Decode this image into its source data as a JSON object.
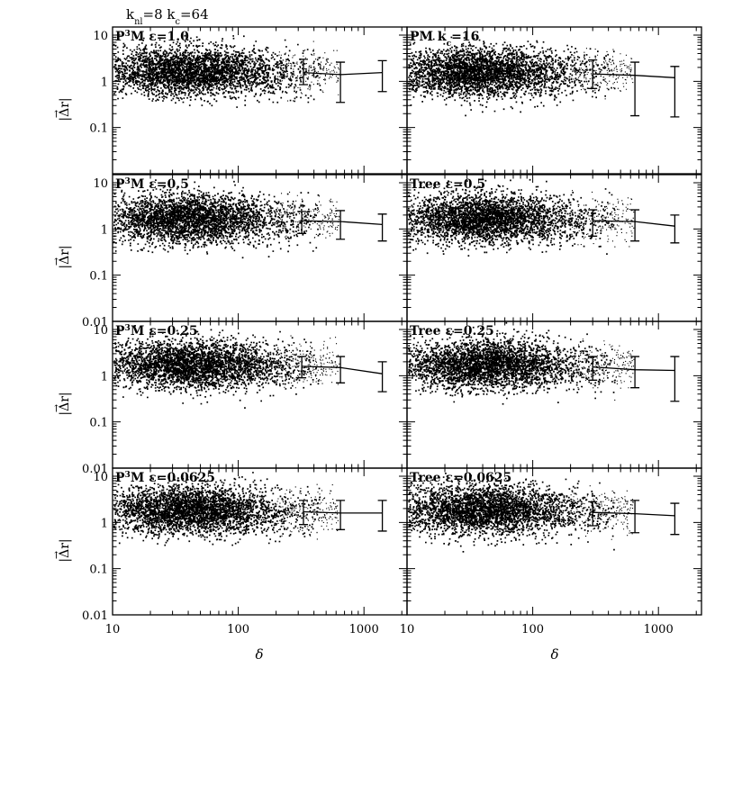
{
  "figure": {
    "header_parts": [
      {
        "t": "k",
        "s": "normal"
      },
      {
        "t": "nl",
        "s": "sub"
      },
      {
        "t": "=8  k",
        "s": "normal"
      },
      {
        "t": "c",
        "s": "sub"
      },
      {
        "t": "=64",
        "s": "normal"
      }
    ],
    "xlabel": "δ",
    "ylabel": "|Δr|",
    "ylabel_arrow": "→"
  },
  "chart_data": [
    {
      "type": "scatter",
      "id": "p3m-1.0",
      "row": 0,
      "col": 0,
      "label_parts": [
        {
          "t": "P",
          "s": "normal"
        },
        {
          "t": "3",
          "s": "sup"
        },
        {
          "t": "M  ε=1.0",
          "s": "normal"
        }
      ],
      "xscale": "log",
      "yscale": "log",
      "xlim": [
        10,
        2200
      ],
      "ylim": [
        0.01,
        15
      ],
      "xticklabels": [],
      "yticklabels": [
        "10",
        "1",
        "0.1"
      ],
      "cloud": {
        "x_center": 40,
        "y_center": 1.7,
        "density": "high"
      },
      "series": [
        {
          "x": [
            330,
            650,
            1400
          ],
          "y": [
            1.55,
            1.4,
            1.55
          ],
          "ylo": [
            0.85,
            0.35,
            0.6
          ],
          "yhi": [
            3.0,
            2.6,
            2.8
          ]
        }
      ]
    },
    {
      "type": "scatter",
      "id": "pm-16",
      "row": 0,
      "col": 1,
      "label_parts": [
        {
          "t": "PM  k",
          "s": "normal"
        },
        {
          "t": "c",
          "s": "sub"
        },
        {
          "t": "=16",
          "s": "normal"
        }
      ],
      "xscale": "log",
      "yscale": "log",
      "xlim": [
        10,
        2200
      ],
      "ylim": [
        0.01,
        15
      ],
      "xticklabels": [],
      "yticklabels": [],
      "cloud": {
        "x_center": 35,
        "y_center": 1.6,
        "density": "high"
      },
      "series": [
        {
          "x": [
            300,
            650,
            1350
          ],
          "y": [
            1.45,
            1.35,
            1.2
          ],
          "ylo": [
            0.7,
            0.18,
            0.17
          ],
          "yhi": [
            2.9,
            2.6,
            2.1
          ]
        }
      ]
    },
    {
      "type": "scatter",
      "id": "p3m-0.5",
      "row": 1,
      "col": 0,
      "label_parts": [
        {
          "t": "P",
          "s": "normal"
        },
        {
          "t": "3",
          "s": "sup"
        },
        {
          "t": "M  ε=0.5",
          "s": "normal"
        }
      ],
      "xscale": "log",
      "yscale": "log",
      "xlim": [
        10,
        2200
      ],
      "ylim": [
        0.01,
        15
      ],
      "xticklabels": [],
      "yticklabels": [
        "10",
        "1",
        "0.1",
        "0.01"
      ],
      "cloud": {
        "x_center": 40,
        "y_center": 1.7,
        "density": "high"
      },
      "series": [
        {
          "x": [
            320,
            650,
            1400
          ],
          "y": [
            1.5,
            1.45,
            1.25
          ],
          "ylo": [
            0.8,
            0.6,
            0.55
          ],
          "yhi": [
            2.4,
            2.5,
            2.1
          ]
        }
      ]
    },
    {
      "type": "scatter",
      "id": "tree-0.5",
      "row": 1,
      "col": 1,
      "label_parts": [
        {
          "t": "Tree  ε=0.5",
          "s": "normal"
        }
      ],
      "xscale": "log",
      "yscale": "log",
      "xlim": [
        10,
        2200
      ],
      "ylim": [
        0.01,
        15
      ],
      "xticklabels": [],
      "yticklabels": [],
      "cloud": {
        "x_center": 40,
        "y_center": 1.7,
        "density": "high"
      },
      "series": [
        {
          "x": [
            300,
            650,
            1350
          ],
          "y": [
            1.5,
            1.45,
            1.15
          ],
          "ylo": [
            0.7,
            0.55,
            0.5
          ],
          "yhi": [
            2.6,
            2.6,
            2.0
          ]
        }
      ]
    },
    {
      "type": "scatter",
      "id": "p3m-0.25",
      "row": 2,
      "col": 0,
      "label_parts": [
        {
          "t": "P",
          "s": "normal"
        },
        {
          "t": "3",
          "s": "sup"
        },
        {
          "t": "M  ε=0.25",
          "s": "normal"
        }
      ],
      "xscale": "log",
      "yscale": "log",
      "xlim": [
        10,
        2200
      ],
      "ylim": [
        0.01,
        15
      ],
      "xticklabels": [],
      "yticklabels": [
        "10",
        "1",
        "0.1",
        "0.01"
      ],
      "cloud": {
        "x_center": 40,
        "y_center": 1.8,
        "density": "high"
      },
      "series": [
        {
          "x": [
            320,
            650,
            1400
          ],
          "y": [
            1.6,
            1.5,
            1.1
          ],
          "ylo": [
            0.9,
            0.7,
            0.45
          ],
          "yhi": [
            2.6,
            2.6,
            2.0
          ]
        }
      ]
    },
    {
      "type": "scatter",
      "id": "tree-0.25",
      "row": 2,
      "col": 1,
      "label_parts": [
        {
          "t": "Tree  ε=0.25",
          "s": "normal"
        }
      ],
      "xscale": "log",
      "yscale": "log",
      "xlim": [
        10,
        2200
      ],
      "ylim": [
        0.01,
        15
      ],
      "xticklabels": [],
      "yticklabels": [],
      "cloud": {
        "x_center": 40,
        "y_center": 1.8,
        "density": "high"
      },
      "series": [
        {
          "x": [
            300,
            650,
            1350
          ],
          "y": [
            1.55,
            1.35,
            1.3
          ],
          "ylo": [
            0.8,
            0.55,
            0.28
          ],
          "yhi": [
            2.6,
            2.6,
            2.6
          ]
        }
      ]
    },
    {
      "type": "scatter",
      "id": "p3m-0.0625",
      "row": 3,
      "col": 0,
      "label_parts": [
        {
          "t": "P",
          "s": "normal"
        },
        {
          "t": "3",
          "s": "sup"
        },
        {
          "t": "M  ε=0.0625",
          "s": "normal"
        }
      ],
      "xscale": "log",
      "yscale": "log",
      "xlim": [
        10,
        2200
      ],
      "ylim": [
        0.01,
        15
      ],
      "xticklabels": [
        "10",
        "100",
        "1000"
      ],
      "yticklabels": [
        "10",
        "1",
        "0.1",
        "0.01"
      ],
      "cloud": {
        "x_center": 40,
        "y_center": 1.9,
        "density": "high"
      },
      "series": [
        {
          "x": [
            330,
            650,
            1400
          ],
          "y": [
            1.7,
            1.6,
            1.6
          ],
          "ylo": [
            0.9,
            0.7,
            0.65
          ],
          "yhi": [
            3.0,
            3.0,
            3.0
          ]
        }
      ]
    },
    {
      "type": "scatter",
      "id": "tree-0.0625",
      "row": 3,
      "col": 1,
      "label_parts": [
        {
          "t": "Tree  ε=0.0625",
          "s": "normal"
        }
      ],
      "xscale": "log",
      "yscale": "log",
      "xlim": [
        10,
        2200
      ],
      "ylim": [
        0.01,
        15
      ],
      "xticklabels": [
        "10",
        "100",
        "1000"
      ],
      "yticklabels": [],
      "cloud": {
        "x_center": 40,
        "y_center": 1.9,
        "density": "high"
      },
      "series": [
        {
          "x": [
            300,
            650,
            1350
          ],
          "y": [
            1.65,
            1.55,
            1.4
          ],
          "ylo": [
            0.85,
            0.6,
            0.55
          ],
          "yhi": [
            2.8,
            3.0,
            2.6
          ]
        }
      ]
    }
  ]
}
